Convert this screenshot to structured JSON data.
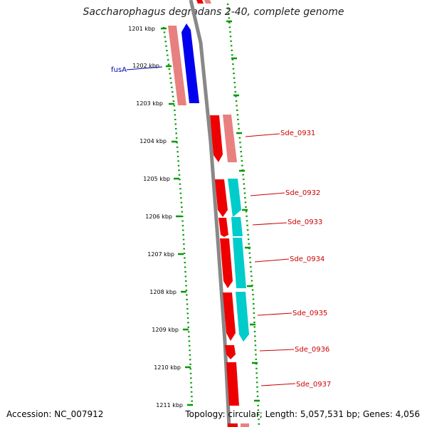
{
  "title": "Saccharophagus degradans 2-40, complete genome",
  "accession": "Accession: NC_007912",
  "summary": "Topology: circular; Length: 5,057,531 bp; Genes: 4,056",
  "ticks": [
    "1201 kbp",
    "1202 kbp",
    "1203 kbp",
    "1204 kbp",
    "1205 kbp",
    "1206 kbp",
    "1207 kbp",
    "1208 kbp",
    "1209 kbp",
    "1210 kbp",
    "1211 kbp"
  ],
  "gene_labels": [
    "fusA",
    "Sde_0931",
    "Sde_0932",
    "Sde_0933",
    "Sde_0934",
    "Sde_0935",
    "Sde_0936",
    "Sde_0937"
  ],
  "colors": {
    "gene_red": "#ee0000",
    "gene_pink": "#e98080",
    "gene_blue": "#0000ee",
    "gene_cyan": "#00cccc",
    "backbone": "#888888",
    "dots": "#009900",
    "label_red": "#cc0000",
    "label_blue": "#0000aa"
  }
}
